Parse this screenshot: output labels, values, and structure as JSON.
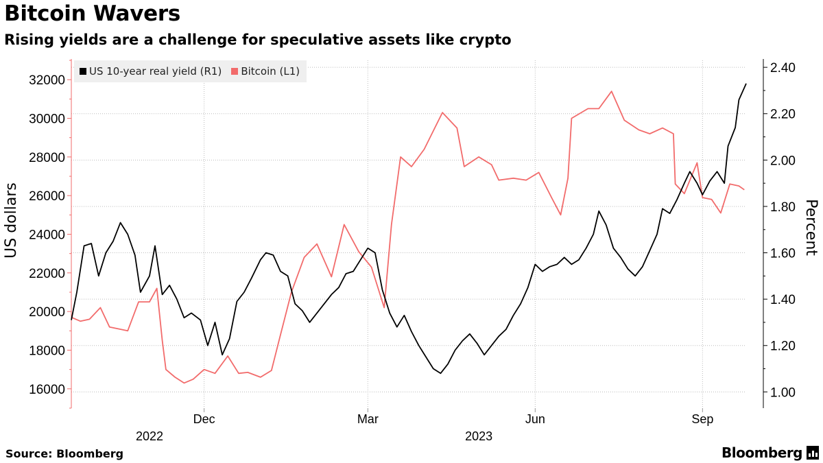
{
  "title": "Bitcoin Wavers",
  "subtitle": "Rising yields are a challenge for speculative assets like crypto",
  "footer": {
    "source": "Source: Bloomberg",
    "brand": "Bloomberg"
  },
  "colors": {
    "real_yield": "#000000",
    "bitcoin": "#f26b6b",
    "grid": "#bbbbbb"
  },
  "chart_data": {
    "type": "line",
    "x_range": [
      "2022-09-19",
      "2023-09-25"
    ],
    "left_axis": {
      "label": "US dollars",
      "min": 15000,
      "max": 33000,
      "ticks": [
        16000,
        18000,
        20000,
        22000,
        24000,
        26000,
        28000,
        30000,
        32000
      ]
    },
    "right_axis": {
      "label": "Percent",
      "min": 0.93,
      "max": 2.43,
      "ticks": [
        1.0,
        1.2,
        1.4,
        1.6,
        1.8,
        2.0,
        2.2,
        2.4
      ],
      "tick_labels": [
        "1.00",
        "1.20",
        "1.40",
        "1.60",
        "1.80",
        "2.00",
        "2.20",
        "2.40"
      ]
    },
    "x_ticks": [
      {
        "date": "2022-12-01",
        "label": "Dec"
      },
      {
        "date": "2023-03-01",
        "label": "Mar"
      },
      {
        "date": "2023-06-01",
        "label": "Jun"
      },
      {
        "date": "2023-09-01",
        "label": "Sep"
      }
    ],
    "year_labels": [
      {
        "date": "2022-11-01",
        "label": "2022"
      },
      {
        "date": "2023-05-01",
        "label": "2023"
      }
    ],
    "legend": {
      "position": "top-left",
      "entries": [
        "US 10-year real yield (R1)",
        "Bitcoin (L1)"
      ]
    },
    "series": [
      {
        "name": "Bitcoin (L1)",
        "axis": "left",
        "points": [
          [
            "2022-09-19",
            19700
          ],
          [
            "2022-09-24",
            19500
          ],
          [
            "2022-09-29",
            19600
          ],
          [
            "2022-10-05",
            20200
          ],
          [
            "2022-10-10",
            19200
          ],
          [
            "2022-10-15",
            19100
          ],
          [
            "2022-10-20",
            19000
          ],
          [
            "2022-10-26",
            20500
          ],
          [
            "2022-11-01",
            20500
          ],
          [
            "2022-11-05",
            21200
          ],
          [
            "2022-11-08",
            18500
          ],
          [
            "2022-11-10",
            17000
          ],
          [
            "2022-11-15",
            16600
          ],
          [
            "2022-11-20",
            16300
          ],
          [
            "2022-11-25",
            16500
          ],
          [
            "2022-12-01",
            17000
          ],
          [
            "2022-12-07",
            16800
          ],
          [
            "2022-12-14",
            17700
          ],
          [
            "2022-12-20",
            16800
          ],
          [
            "2022-12-25",
            16850
          ],
          [
            "2023-01-01",
            16600
          ],
          [
            "2023-01-07",
            16950
          ],
          [
            "2023-01-12",
            18800
          ],
          [
            "2023-01-18",
            21000
          ],
          [
            "2023-01-25",
            22800
          ],
          [
            "2023-02-01",
            23500
          ],
          [
            "2023-02-09",
            21800
          ],
          [
            "2023-02-16",
            24500
          ],
          [
            "2023-02-24",
            23100
          ],
          [
            "2023-03-03",
            22300
          ],
          [
            "2023-03-10",
            20200
          ],
          [
            "2023-03-14",
            24500
          ],
          [
            "2023-03-19",
            28000
          ],
          [
            "2023-03-25",
            27500
          ],
          [
            "2023-04-01",
            28400
          ],
          [
            "2023-04-11",
            30300
          ],
          [
            "2023-04-19",
            29500
          ],
          [
            "2023-04-23",
            27500
          ],
          [
            "2023-05-01",
            28000
          ],
          [
            "2023-05-08",
            27600
          ],
          [
            "2023-05-12",
            26800
          ],
          [
            "2023-05-20",
            26900
          ],
          [
            "2023-05-27",
            26800
          ],
          [
            "2023-06-03",
            27200
          ],
          [
            "2023-06-10",
            25900
          ],
          [
            "2023-06-15",
            25000
          ],
          [
            "2023-06-19",
            26900
          ],
          [
            "2023-06-21",
            30000
          ],
          [
            "2023-06-30",
            30500
          ],
          [
            "2023-07-06",
            30500
          ],
          [
            "2023-07-13",
            31400
          ],
          [
            "2023-07-20",
            29900
          ],
          [
            "2023-07-28",
            29400
          ],
          [
            "2023-08-03",
            29200
          ],
          [
            "2023-08-10",
            29500
          ],
          [
            "2023-08-16",
            29200
          ],
          [
            "2023-08-17",
            26600
          ],
          [
            "2023-08-22",
            26100
          ],
          [
            "2023-08-29",
            27700
          ],
          [
            "2023-09-01",
            25900
          ],
          [
            "2023-09-06",
            25800
          ],
          [
            "2023-09-11",
            25100
          ],
          [
            "2023-09-16",
            26600
          ],
          [
            "2023-09-21",
            26500
          ],
          [
            "2023-09-24",
            26300
          ]
        ]
      },
      {
        "name": "US 10-year real yield (R1)",
        "axis": "right",
        "points": [
          [
            "2022-09-19",
            1.31
          ],
          [
            "2022-09-22",
            1.43
          ],
          [
            "2022-09-26",
            1.63
          ],
          [
            "2022-09-30",
            1.64
          ],
          [
            "2022-10-04",
            1.5
          ],
          [
            "2022-10-08",
            1.6
          ],
          [
            "2022-10-12",
            1.65
          ],
          [
            "2022-10-16",
            1.73
          ],
          [
            "2022-10-20",
            1.68
          ],
          [
            "2022-10-24",
            1.59
          ],
          [
            "2022-10-27",
            1.43
          ],
          [
            "2022-11-01",
            1.5
          ],
          [
            "2022-11-04",
            1.63
          ],
          [
            "2022-11-08",
            1.42
          ],
          [
            "2022-11-12",
            1.46
          ],
          [
            "2022-11-16",
            1.4
          ],
          [
            "2022-11-20",
            1.32
          ],
          [
            "2022-11-24",
            1.34
          ],
          [
            "2022-11-29",
            1.31
          ],
          [
            "2022-12-03",
            1.2
          ],
          [
            "2022-12-07",
            1.3
          ],
          [
            "2022-12-11",
            1.16
          ],
          [
            "2022-12-15",
            1.23
          ],
          [
            "2022-12-19",
            1.39
          ],
          [
            "2022-12-23",
            1.43
          ],
          [
            "2022-12-27",
            1.49
          ],
          [
            "2023-01-01",
            1.57
          ],
          [
            "2023-01-04",
            1.6
          ],
          [
            "2023-01-08",
            1.59
          ],
          [
            "2023-01-12",
            1.52
          ],
          [
            "2023-01-16",
            1.5
          ],
          [
            "2023-01-20",
            1.38
          ],
          [
            "2023-01-24",
            1.35
          ],
          [
            "2023-01-28",
            1.3
          ],
          [
            "2023-02-01",
            1.34
          ],
          [
            "2023-02-05",
            1.38
          ],
          [
            "2023-02-09",
            1.42
          ],
          [
            "2023-02-13",
            1.45
          ],
          [
            "2023-02-17",
            1.51
          ],
          [
            "2023-02-21",
            1.52
          ],
          [
            "2023-02-25",
            1.57
          ],
          [
            "2023-03-01",
            1.62
          ],
          [
            "2023-03-05",
            1.6
          ],
          [
            "2023-03-09",
            1.44
          ],
          [
            "2023-03-13",
            1.34
          ],
          [
            "2023-03-17",
            1.28
          ],
          [
            "2023-03-21",
            1.33
          ],
          [
            "2023-03-25",
            1.26
          ],
          [
            "2023-03-29",
            1.2
          ],
          [
            "2023-04-02",
            1.15
          ],
          [
            "2023-04-06",
            1.1
          ],
          [
            "2023-04-10",
            1.08
          ],
          [
            "2023-04-14",
            1.12
          ],
          [
            "2023-04-18",
            1.18
          ],
          [
            "2023-04-22",
            1.22
          ],
          [
            "2023-04-26",
            1.25
          ],
          [
            "2023-04-30",
            1.21
          ],
          [
            "2023-05-04",
            1.16
          ],
          [
            "2023-05-08",
            1.2
          ],
          [
            "2023-05-12",
            1.24
          ],
          [
            "2023-05-16",
            1.27
          ],
          [
            "2023-05-20",
            1.33
          ],
          [
            "2023-05-24",
            1.38
          ],
          [
            "2023-05-28",
            1.45
          ],
          [
            "2023-06-01",
            1.55
          ],
          [
            "2023-06-05",
            1.52
          ],
          [
            "2023-06-09",
            1.54
          ],
          [
            "2023-06-13",
            1.55
          ],
          [
            "2023-06-17",
            1.58
          ],
          [
            "2023-06-21",
            1.55
          ],
          [
            "2023-06-25",
            1.57
          ],
          [
            "2023-06-29",
            1.62
          ],
          [
            "2023-07-03",
            1.68
          ],
          [
            "2023-07-06",
            1.78
          ],
          [
            "2023-07-10",
            1.72
          ],
          [
            "2023-07-14",
            1.62
          ],
          [
            "2023-07-18",
            1.58
          ],
          [
            "2023-07-22",
            1.53
          ],
          [
            "2023-07-26",
            1.5
          ],
          [
            "2023-07-30",
            1.54
          ],
          [
            "2023-08-03",
            1.61
          ],
          [
            "2023-08-07",
            1.68
          ],
          [
            "2023-08-10",
            1.79
          ],
          [
            "2023-08-14",
            1.77
          ],
          [
            "2023-08-18",
            1.83
          ],
          [
            "2023-08-22",
            1.9
          ],
          [
            "2023-08-25",
            1.95
          ],
          [
            "2023-08-29",
            1.9
          ],
          [
            "2023-09-01",
            1.85
          ],
          [
            "2023-09-05",
            1.91
          ],
          [
            "2023-09-09",
            1.95
          ],
          [
            "2023-09-13",
            1.9
          ],
          [
            "2023-09-15",
            2.06
          ],
          [
            "2023-09-19",
            2.14
          ],
          [
            "2023-09-21",
            2.26
          ],
          [
            "2023-09-25",
            2.33
          ]
        ]
      }
    ]
  }
}
